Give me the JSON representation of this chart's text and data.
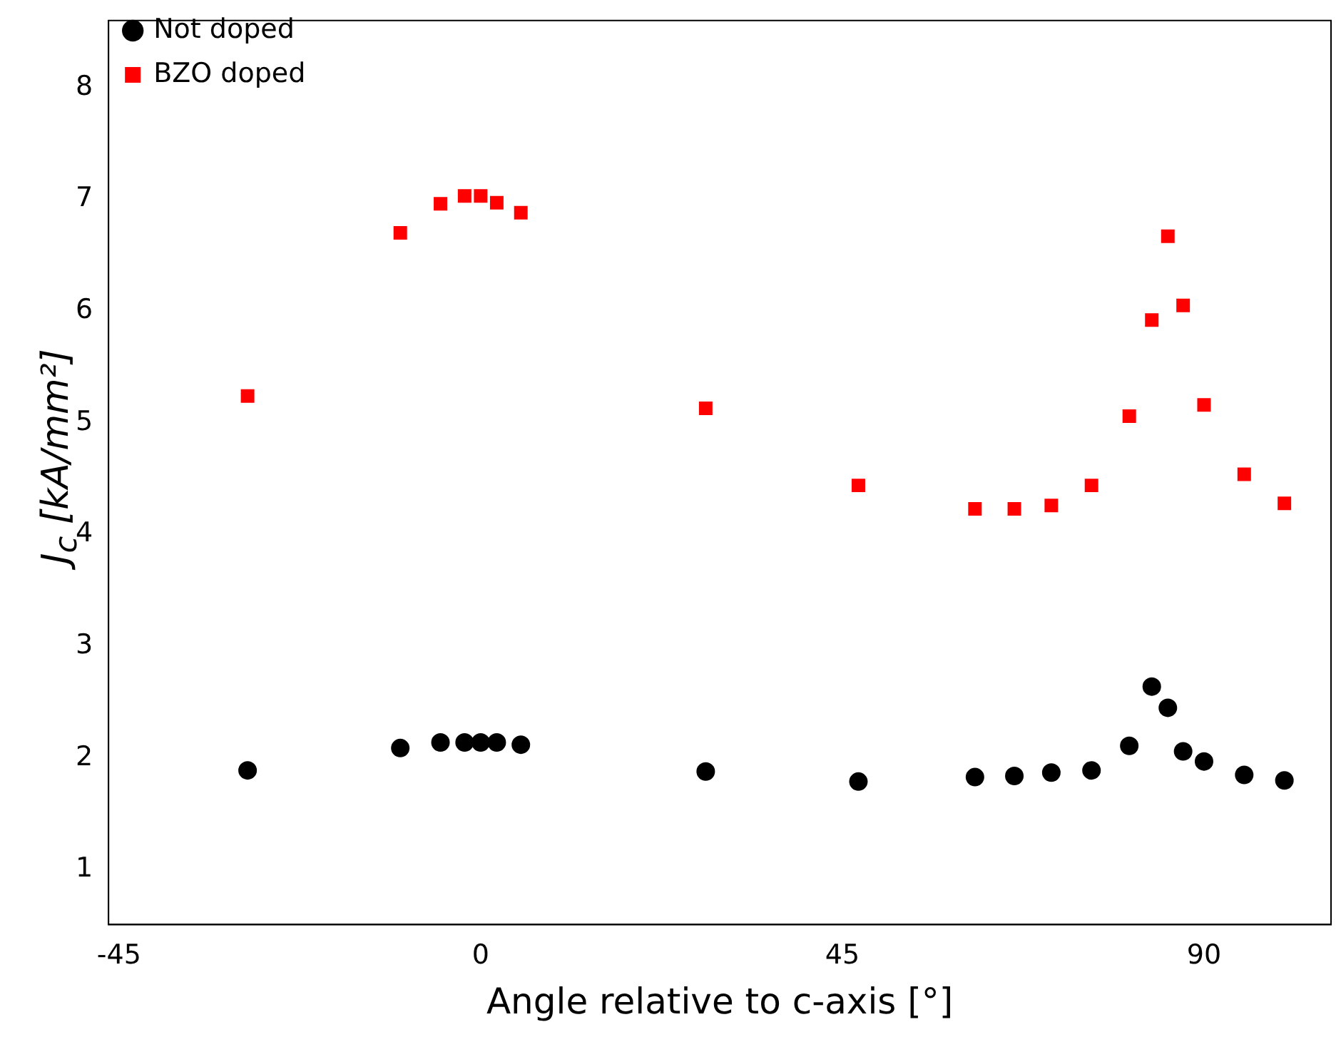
{
  "chart_data": {
    "type": "scatter",
    "xlabel": "Angle relative to c-axis [°]",
    "ylabel": "J$_{c}$ [kA/mm²]",
    "xlim": [
      -46.3,
      105.8
    ],
    "ylim": [
      0.51,
      8.6
    ],
    "xticks": [
      -45,
      0,
      45,
      90
    ],
    "yticks": [
      1,
      2,
      3,
      4,
      5,
      6,
      7,
      8
    ],
    "grid": false,
    "legend": "top left",
    "series": [
      {
        "name": "Not doped",
        "color": "#000000",
        "marker": "circle",
        "x": [
          -29,
          -10,
          -5,
          -2,
          0,
          2,
          5,
          28,
          47,
          61.5,
          66.4,
          71,
          76,
          80.7,
          83.5,
          85.5,
          87.4,
          90,
          95,
          100
        ],
        "values": [
          1.89,
          2.09,
          2.14,
          2.14,
          2.14,
          2.14,
          2.12,
          1.88,
          1.79,
          1.83,
          1.84,
          1.87,
          1.89,
          2.11,
          2.64,
          2.45,
          2.06,
          1.97,
          1.85,
          1.8
        ]
      },
      {
        "name": "BZO doped",
        "color": "#ff0000",
        "marker": "square",
        "x": [
          -29,
          -10,
          -5,
          -2,
          0,
          2,
          5,
          28,
          47,
          61.5,
          66.4,
          71,
          76,
          80.7,
          83.5,
          85.5,
          87.4,
          90,
          95,
          100
        ],
        "values": [
          5.24,
          6.7,
          6.96,
          7.03,
          7.03,
          6.97,
          6.88,
          5.13,
          4.44,
          4.23,
          4.23,
          4.26,
          4.44,
          5.06,
          5.92,
          6.67,
          6.05,
          5.16,
          4.54,
          4.28
        ]
      }
    ]
  }
}
